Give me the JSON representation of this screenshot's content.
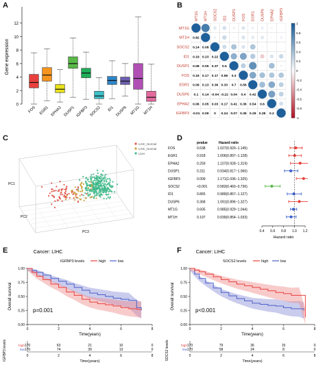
{
  "panels": [
    {
      "label": "A"
    },
    {
      "label": "B"
    },
    {
      "label": "C"
    },
    {
      "label": "D"
    },
    {
      "label": "E"
    },
    {
      "label": "F"
    }
  ],
  "chart_data": [
    {
      "panel": "A",
      "type": "box",
      "ylabel": "Gene expression",
      "ylim": [
        0,
        14
      ],
      "yticks": [
        0,
        2,
        4,
        6,
        8,
        10,
        12
      ],
      "categories": [
        "FOS",
        "EGR1",
        "EPHA2",
        "DUSP1",
        "IGFBP3",
        "SOCS2",
        "ID1",
        "DUSP6",
        "MT1G",
        "MT1H"
      ],
      "colors": [
        "#e8403c",
        "#f7941d",
        "#e8e11c",
        "#58b848",
        "#1fae5a",
        "#3ec0c9",
        "#2e86c8",
        "#6b5fb0",
        "#b14fb5",
        "#e46a9e"
      ],
      "boxes": [
        {
          "min": 0.0,
          "q1": 2.4,
          "median": 3.2,
          "q3": 4.4,
          "max": 7.6
        },
        {
          "min": 0.5,
          "q1": 3.4,
          "median": 4.3,
          "q3": 5.4,
          "max": 8.2
        },
        {
          "min": 0.3,
          "q1": 1.7,
          "median": 2.2,
          "q3": 2.9,
          "max": 5.1
        },
        {
          "min": 1.0,
          "q1": 5.3,
          "median": 6.0,
          "q3": 7.0,
          "max": 9.8
        },
        {
          "min": 0.7,
          "q1": 3.9,
          "median": 4.6,
          "q3": 5.3,
          "max": 7.7
        },
        {
          "min": 0.0,
          "q1": 0.8,
          "median": 1.2,
          "q3": 1.9,
          "max": 3.9
        },
        {
          "min": 0.8,
          "q1": 2.9,
          "median": 3.5,
          "q3": 4.1,
          "max": 6.4
        },
        {
          "min": 1.2,
          "q1": 2.9,
          "median": 3.4,
          "q3": 4.0,
          "max": 6.0
        },
        {
          "min": 0.0,
          "q1": 2.2,
          "median": 3.8,
          "q3": 6.0,
          "max": 12.9
        },
        {
          "min": 0.0,
          "q1": 0.4,
          "median": 1.0,
          "q3": 1.9,
          "max": 5.9
        }
      ]
    },
    {
      "panel": "B",
      "type": "heatmap",
      "genes": [
        "MT1G",
        "MT1H",
        "SOCS2",
        "ID1",
        "DUSP1",
        "FOS",
        "EGR1",
        "DUSP6",
        "EPHA2",
        "IGFBP3"
      ],
      "matrix": [
        [
          1,
          0.82,
          0.14,
          0.19,
          0.08,
          0.16,
          0.09,
          0.1,
          0.06,
          -0.01
        ],
        [
          0.82,
          1,
          0.08,
          0.23,
          0.05,
          0.17,
          0.13,
          0.14,
          0.05,
          0.09
        ],
        [
          0.14,
          0.08,
          1,
          0.22,
          0.37,
          0.17,
          0.36,
          -0.04,
          0.03,
          0
        ],
        [
          0.19,
          0.23,
          0.22,
          1,
          0.5,
          0.58,
          0.33,
          -0.22,
          0.17,
          0.24
        ],
        [
          0.08,
          0.05,
          0.37,
          0.5,
          1,
          0.3,
          0.7,
          0.04,
          0.41,
          0.07
        ],
        [
          0.16,
          0.17,
          0.17,
          0.58,
          0.3,
          1,
          0.56,
          0.4,
          0.36,
          0.35
        ],
        [
          0.09,
          0.13,
          0.36,
          0.33,
          0.7,
          0.56,
          1,
          0.42,
          0.54,
          0.29
        ],
        [
          0.1,
          0.14,
          -0.04,
          -0.22,
          0.04,
          0.4,
          0.42,
          1,
          0.6,
          0.28
        ],
        [
          0.06,
          0.05,
          0.03,
          0.17,
          0.41,
          0.36,
          0.54,
          0.6,
          1,
          0.2
        ],
        [
          -0.01,
          0.09,
          0,
          0.24,
          0.07,
          0.35,
          0.29,
          0.28,
          0.2,
          1
        ]
      ],
      "lower_labels": [
        [],
        [
          "0.82"
        ],
        [
          "0.14",
          "0.08"
        ],
        [
          "0.19",
          "0.23",
          "0.22"
        ],
        [
          "0.08",
          "0.05",
          "0.37",
          "0.5"
        ],
        [
          "0.16",
          "0.17",
          "0.17",
          "0.58",
          "0.3"
        ],
        [
          "0.09",
          "0.13",
          "0.36",
          "0.33",
          "0.7",
          "0.56"
        ],
        [
          "0.1",
          "0.14",
          "-0.04",
          "-0.22",
          "0.04",
          "0.4",
          "0.42"
        ],
        [
          "0.06",
          "0.05",
          "0.03",
          "0.17",
          "0.41",
          "0.36",
          "0.54",
          "0.6"
        ],
        [
          "-0.01",
          "0.09",
          "0",
          "0.24",
          "0.07",
          "0.35",
          "0.29",
          "0.28",
          "0.2"
        ]
      ],
      "colorbar_ticks": [
        "1",
        "0.8",
        "0.6",
        "0.4",
        "0.2",
        "0",
        "-0.2",
        "-0.4",
        "-0.6",
        "-0.8",
        "-1"
      ]
    },
    {
      "panel": "C",
      "type": "scatter3d",
      "axis_labels": [
        "PC1",
        "PC2",
        "PC3"
      ],
      "legend": [
        "LIHC_Normal",
        "LIHC_Normal",
        "Liver"
      ],
      "colors": [
        "#e05a4e",
        "#c9a23a",
        "#3fb88a"
      ]
    },
    {
      "panel": "D",
      "type": "forest",
      "col_pvalue": "pvalue",
      "col_hr": "Hazard ratio",
      "xlabel": "Hazard ratio",
      "xticks": [
        "0.4",
        "0.6",
        "0.8",
        "1.0",
        "1.2"
      ],
      "xlim": [
        0.4,
        1.25
      ],
      "rows": [
        {
          "gene": "FOS",
          "p": "0.638",
          "text": "1.027(0.920−1.145)",
          "hr": 1.027,
          "lo": 0.92,
          "hi": 1.145,
          "color": "#e8403c"
        },
        {
          "gene": "EGR1",
          "p": "0.918",
          "text": "1.006(0.897−1.128)",
          "hr": 1.006,
          "lo": 0.897,
          "hi": 1.128,
          "color": "#e8403c"
        },
        {
          "gene": "EPHA2",
          "p": "0.259",
          "text": "1.107(0.928−1.319)",
          "hr": 1.107,
          "lo": 0.928,
          "hi": 1.319,
          "color": "#e8403c"
        },
        {
          "gene": "DUSP1",
          "p": "0.311",
          "text": "0.934(0.817−1.066)",
          "hr": 0.934,
          "lo": 0.817,
          "hi": 1.066,
          "color": "#3a5fcd"
        },
        {
          "gene": "IGFBP3",
          "p": "0.009",
          "text": "1.171(1.036−1.325)",
          "hr": 1.171,
          "lo": 1.036,
          "hi": 1.325,
          "color": "#e8403c"
        },
        {
          "gene": "SOCS2",
          "p": "<0.001",
          "text": "0.583(0.460−0.736)",
          "hr": 0.583,
          "lo": 0.46,
          "hi": 0.736,
          "color": "#58b848"
        },
        {
          "gene": "ID1",
          "p": "0.865",
          "text": "0.989(0.867−1.127)",
          "hr": 0.989,
          "lo": 0.867,
          "hi": 1.127,
          "color": "#3a5fcd"
        },
        {
          "gene": "DUSP6",
          "p": "0.368",
          "text": "1.091(0.896−1.327)",
          "hr": 1.091,
          "lo": 0.896,
          "hi": 1.327,
          "color": "#e8403c"
        },
        {
          "gene": "MT1G",
          "p": "0.605",
          "text": "0.985(0.929−1.044)",
          "hr": 0.985,
          "lo": 0.929,
          "hi": 1.044,
          "color": "#3a5fcd"
        },
        {
          "gene": "MT1H",
          "p": "0.197",
          "text": "0.939(0.854−1.033)",
          "hr": 0.939,
          "lo": 0.854,
          "hi": 1.033,
          "color": "#3a5fcd"
        }
      ]
    },
    {
      "panel": "E",
      "type": "km",
      "title": "Cancer: LIHC",
      "legend_title": "IGFBP3 levels",
      "legend_high": "high",
      "legend_low": "low",
      "pvalue": "p=0.001",
      "xlabel": "Time(years)",
      "ylabel": "Overall survival",
      "yticks": [
        "0.00",
        "0.25",
        "0.50",
        "0.75",
        "1.00"
      ],
      "xticks": [
        "0",
        "2",
        "4",
        "6",
        "8"
      ],
      "xlim": [
        0,
        8
      ],
      "high_curve": [
        [
          0,
          1
        ],
        [
          0.3,
          0.93
        ],
        [
          0.6,
          0.86
        ],
        [
          1,
          0.8
        ],
        [
          1.5,
          0.72
        ],
        [
          2,
          0.66
        ],
        [
          2.5,
          0.58
        ],
        [
          3,
          0.52
        ],
        [
          3.5,
          0.45
        ],
        [
          4,
          0.4
        ],
        [
          4.5,
          0.37
        ],
        [
          5,
          0.35
        ],
        [
          5.5,
          0.33
        ],
        [
          6,
          0.3
        ],
        [
          6.5,
          0.28
        ],
        [
          7,
          0.27
        ],
        [
          7.3,
          0.27
        ]
      ],
      "low_curve": [
        [
          0,
          1
        ],
        [
          0.3,
          0.96
        ],
        [
          0.6,
          0.93
        ],
        [
          1,
          0.88
        ],
        [
          1.5,
          0.82
        ],
        [
          2,
          0.77
        ],
        [
          2.5,
          0.72
        ],
        [
          3,
          0.66
        ],
        [
          3.5,
          0.61
        ],
        [
          4,
          0.56
        ],
        [
          4.5,
          0.53
        ],
        [
          5,
          0.5
        ],
        [
          5.5,
          0.47
        ],
        [
          6,
          0.45
        ],
        [
          6.5,
          0.43
        ],
        [
          7,
          0.3
        ],
        [
          7.3,
          0.25
        ]
      ],
      "risk_title": "IGFBP3 levels",
      "risk_rows": [
        {
          "label": "high",
          "values": [
            "170",
            "63",
            "21",
            "10",
            "0"
          ]
        },
        {
          "label": "low",
          "values": [
            "170",
            "74",
            "39",
            "13",
            "0"
          ]
        }
      ]
    },
    {
      "panel": "F",
      "type": "km",
      "title": "Cancer: LIHC",
      "legend_title": "SOCS2 levels",
      "legend_high": "high",
      "legend_low": "low",
      "pvalue": "p<0.001",
      "xlabel": "Time(years)",
      "ylabel": "Overall survival",
      "yticks": [
        "0.00",
        "0.25",
        "0.50",
        "0.75",
        "1.00"
      ],
      "xticks": [
        "0",
        "2",
        "4",
        "6",
        "8"
      ],
      "xlim": [
        0,
        8
      ],
      "high_curve": [
        [
          0,
          1
        ],
        [
          0.3,
          0.97
        ],
        [
          0.6,
          0.94
        ],
        [
          1,
          0.9
        ],
        [
          1.5,
          0.85
        ],
        [
          2,
          0.8
        ],
        [
          2.5,
          0.76
        ],
        [
          3,
          0.72
        ],
        [
          3.5,
          0.69
        ],
        [
          4,
          0.66
        ],
        [
          4.5,
          0.63
        ],
        [
          5,
          0.6
        ],
        [
          5.5,
          0.57
        ],
        [
          6,
          0.55
        ],
        [
          6.5,
          0.52
        ],
        [
          7,
          0.52
        ],
        [
          7.4,
          0.13
        ]
      ],
      "low_curve": [
        [
          0,
          1
        ],
        [
          0.3,
          0.9
        ],
        [
          0.6,
          0.82
        ],
        [
          1,
          0.74
        ],
        [
          1.5,
          0.65
        ],
        [
          2,
          0.57
        ],
        [
          2.5,
          0.51
        ],
        [
          3,
          0.46
        ],
        [
          3.5,
          0.42
        ],
        [
          4,
          0.38
        ],
        [
          4.5,
          0.36
        ],
        [
          5,
          0.34
        ],
        [
          5.5,
          0.33
        ],
        [
          6,
          0.3
        ],
        [
          6.5,
          0.28
        ],
        [
          7,
          0.28
        ],
        [
          7.3,
          0.25
        ]
      ],
      "risk_title": "SOCS2 levels",
      "risk_rows": [
        {
          "label": "high",
          "values": [
            "170",
            "79",
            "36",
            "15",
            "0"
          ]
        },
        {
          "label": "low",
          "values": [
            "170",
            "58",
            "24",
            "8",
            "0"
          ]
        }
      ]
    }
  ]
}
